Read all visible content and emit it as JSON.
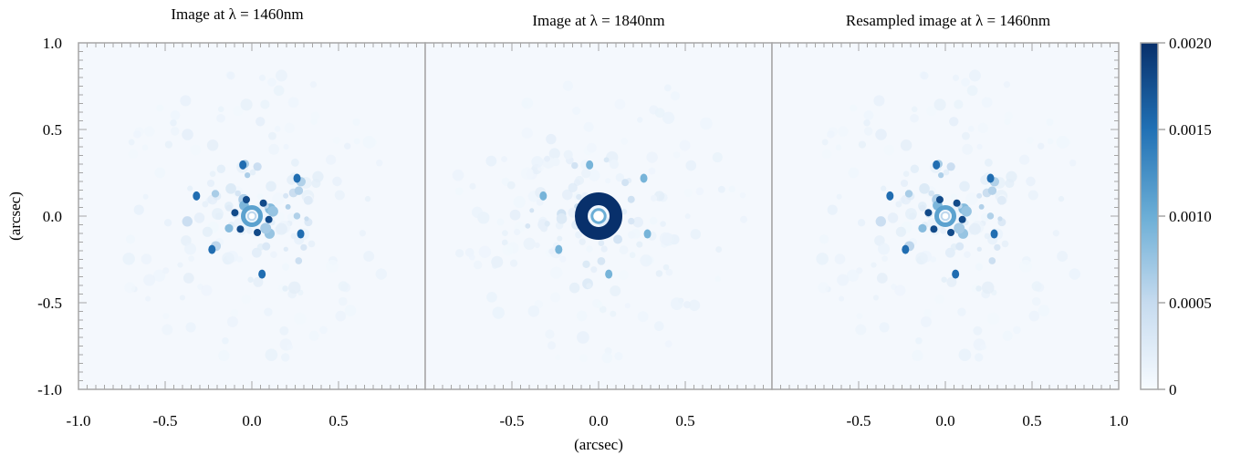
{
  "chart_data": {
    "type": "heatmap",
    "xlabel": "(arcsec)",
    "ylabel": "(arcsec)",
    "xlim": [
      -1.0,
      1.0
    ],
    "ylim": [
      -1.0,
      1.0
    ],
    "y_ticks": [
      "1.0",
      "0.5",
      "0.0",
      "-0.5",
      "-1.0"
    ],
    "y_tick_values": [
      1.0,
      0.5,
      0.0,
      -0.5,
      -1.0
    ],
    "panels": [
      {
        "title": "Image at λ = 1460nm",
        "x_ticks": [
          "-1.0",
          "-0.5",
          "0.0",
          "0.5"
        ],
        "x_tick_values": [
          -1.0,
          -0.5,
          0.0,
          0.5
        ],
        "ring_radius": 0.05,
        "core_strength": 0.55,
        "speckle_strength": 0.9
      },
      {
        "title": "Image at λ = 1840nm",
        "x_ticks": [
          "-0.5",
          "0.0",
          "0.5"
        ],
        "x_tick_values": [
          -0.5,
          0.0,
          0.5
        ],
        "ring_radius": 0.1,
        "core_strength": 1.0,
        "speckle_strength": 0.55
      },
      {
        "title": "Resampled image at λ = 1460nm",
        "x_ticks": [
          "-0.5",
          "0.0",
          "0.5",
          "1.0"
        ],
        "x_tick_values": [
          -0.5,
          0.0,
          0.5,
          1.0
        ],
        "ring_radius": 0.05,
        "core_strength": 0.55,
        "speckle_strength": 0.9
      }
    ],
    "colorbar": {
      "ticks": [
        "0.0020",
        "0.0015",
        "0.0010",
        "0.0005",
        "0"
      ],
      "tick_values": [
        0.002,
        0.0015,
        0.001,
        0.0005,
        0
      ],
      "range": [
        0,
        0.002
      ],
      "colormap": [
        "#f7fbff",
        "#c6dbef",
        "#6baed6",
        "#2171b5",
        "#08306b"
      ]
    },
    "grid": false,
    "legend": "none"
  },
  "colors": {
    "frame": "#a6a6a6",
    "background": "#f4f8fd"
  }
}
